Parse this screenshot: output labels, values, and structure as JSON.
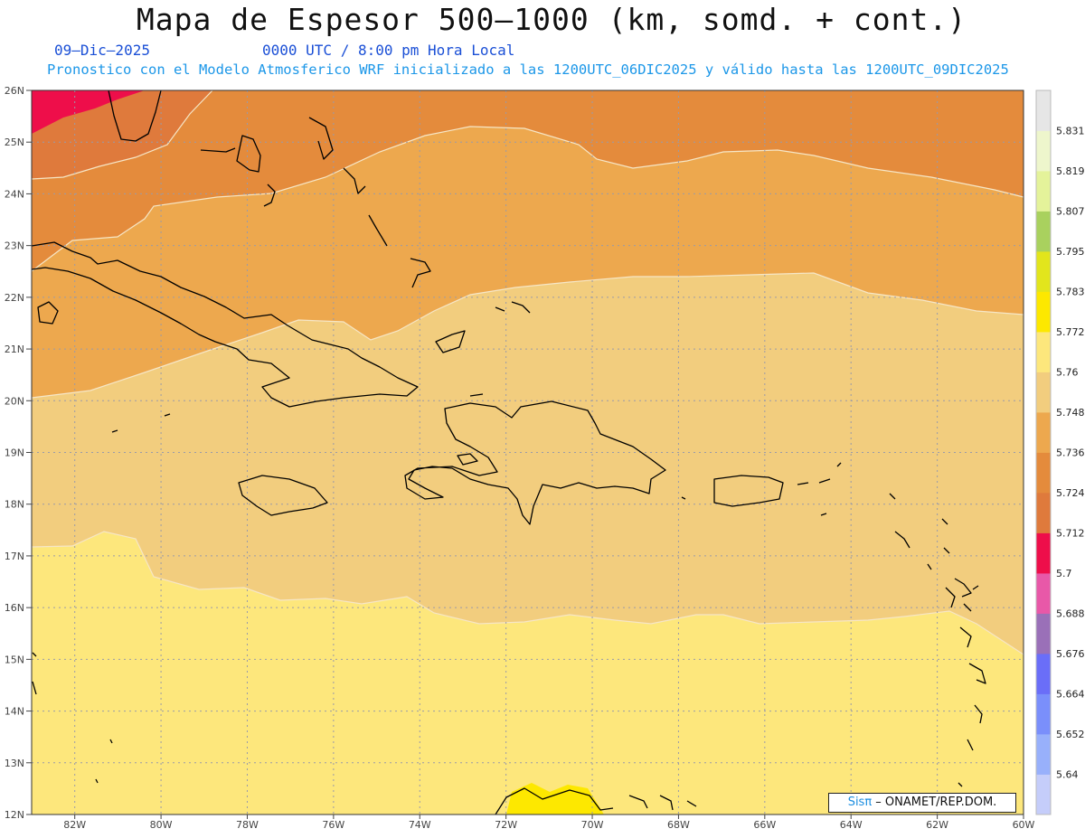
{
  "title": "Mapa de Espesor 500–1000 (km, somd. + cont.)",
  "date_label": "09–Dic–2025",
  "time_label": "0000 UTC / 8:00 pm Hora Local",
  "forecast_label": "Pronostico con el Modelo Atmosferico WRF inicializado a las 1200UTC_06DIC2025 y válido hasta las  1200UTC_09DIC2025",
  "credit": {
    "brand": "Sisπ",
    "org": " – ONAMET/REP.DOM."
  },
  "lat_ticks": [
    "12N",
    "13N",
    "14N",
    "15N",
    "16N",
    "17N",
    "18N",
    "19N",
    "20N",
    "21N",
    "22N",
    "23N",
    "24N",
    "25N",
    "26N"
  ],
  "lon_ticks": [
    "82W",
    "80W",
    "78W",
    "76W",
    "74W",
    "72W",
    "70W",
    "68W",
    "66W",
    "64W",
    "62W",
    "60W"
  ],
  "colorbar": {
    "labels": [
      "5.64",
      "5.652",
      "5.664",
      "5.676",
      "5.688",
      "5.7",
      "5.712",
      "5.724",
      "5.736",
      "5.748",
      "5.76",
      "5.772",
      "5.783",
      "5.795",
      "5.807",
      "5.819",
      "5.831"
    ],
    "colors": [
      "#c5cdfa",
      "#98b0fb",
      "#7a8ffb",
      "#6a6ef8",
      "#9a70b8",
      "#e858a8",
      "#ee0e4a",
      "#df7a3c",
      "#e48b3c",
      "#eda84e",
      "#f2cd7e",
      "#fde77c",
      "#fde800",
      "#e2e51c",
      "#a9d15e",
      "#e4f39a",
      "#eef6cc",
      "#e6e6e6"
    ]
  },
  "map_colors": {
    "band_5_712": "#ee0e4a",
    "band_5_724": "#df7a3c",
    "band_5_736": "#e48b3c",
    "band_5_748": "#eda84e",
    "band_5_760": "#f2cd7e",
    "band_5_772": "#fde77c",
    "band_5_783": "#fde800"
  }
}
